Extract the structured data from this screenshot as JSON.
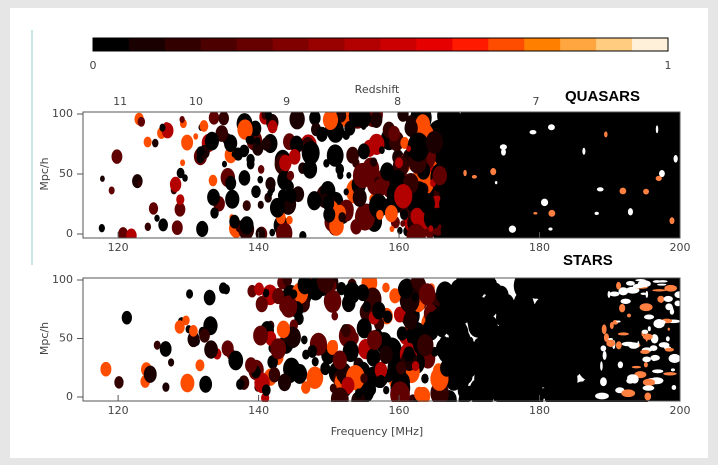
{
  "chart_data": {
    "type": "image-map",
    "colorbar": {
      "colors": [
        "#000000",
        "#1a0000",
        "#330000",
        "#4d0000",
        "#660000",
        "#800000",
        "#990000",
        "#b30000",
        "#cc0000",
        "#e60000",
        "#ff1a00",
        "#ff4d00",
        "#ff8000",
        "#ffa640",
        "#ffcc80",
        "#fff0d9"
      ],
      "lim": [
        0,
        1
      ],
      "ticks": [
        0,
        1
      ]
    },
    "x2label": "Redshift",
    "x2ticks": [
      {
        "value": 118.3,
        "label": "11"
      },
      {
        "value": 129.1,
        "label": "10"
      },
      {
        "value": 142,
        "label": "9"
      },
      {
        "value": 157.8,
        "label": "8"
      },
      {
        "value": 177.5,
        "label": "7"
      }
    ],
    "panels": [
      {
        "title": "QUASARS",
        "ylabel": "Mpc/h"
      },
      {
        "title": "STARS",
        "ylabel": "Mpc/h"
      }
    ],
    "xlabel": "Frequency [MHz]",
    "xlim": [
      115,
      200
    ],
    "xticks": [
      120,
      140,
      160,
      180,
      200
    ],
    "ylim": [
      0,
      100
    ],
    "yticks": [
      0,
      50,
      100
    ]
  }
}
